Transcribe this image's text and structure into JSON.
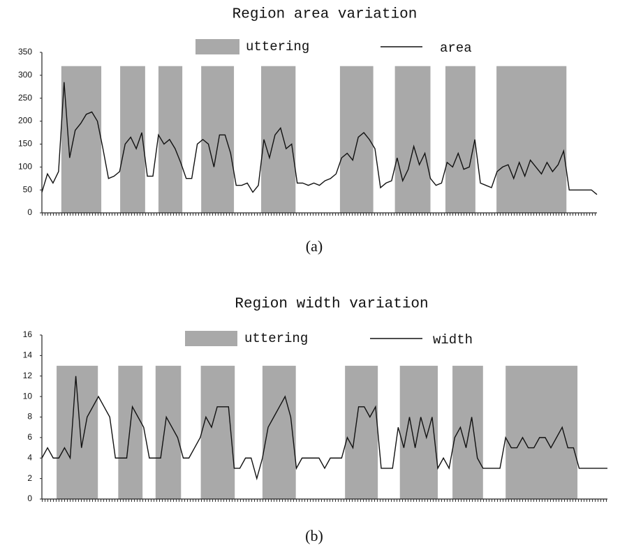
{
  "chart_data": [
    {
      "type": "line",
      "title": "Region area variation",
      "caption": "(a)",
      "xlim": [
        0,
        100
      ],
      "ylim": [
        0,
        350
      ],
      "yticks": [
        0,
        50,
        100,
        150,
        200,
        250,
        300,
        350
      ],
      "uttering": {
        "name": "uttering",
        "color": "#a9a9a9",
        "height": 320,
        "spans": [
          [
            3.5,
            10.7
          ],
          [
            14.1,
            18.6
          ],
          [
            21,
            25.3
          ],
          [
            28.7,
            34.6
          ],
          [
            39.5,
            45.7
          ],
          [
            53.7,
            59.7
          ],
          [
            63.6,
            70
          ],
          [
            72.7,
            78.1
          ],
          [
            81.9,
            94.5
          ]
        ]
      },
      "series": [
        {
          "name": "area",
          "color": "#111111",
          "values": [
            45,
            85,
            65,
            90,
            285,
            120,
            180,
            195,
            215,
            220,
            200,
            140,
            75,
            80,
            90,
            150,
            165,
            140,
            175,
            80,
            80,
            170,
            150,
            160,
            140,
            110,
            75,
            75,
            150,
            160,
            150,
            100,
            170,
            170,
            130,
            60,
            60,
            65,
            45,
            60,
            160,
            120,
            170,
            185,
            140,
            150,
            65,
            65,
            60,
            65,
            60,
            70,
            75,
            85,
            120,
            130,
            115,
            165,
            175,
            160,
            140,
            55,
            65,
            70,
            120,
            70,
            95,
            145,
            105,
            130,
            75,
            60,
            65,
            110,
            100,
            130,
            95,
            100,
            160,
            65,
            60,
            55,
            90,
            100,
            105,
            75,
            110,
            80,
            115,
            100,
            85,
            110,
            90,
            105,
            135,
            50,
            50,
            50,
            50,
            50,
            40
          ]
        }
      ]
    },
    {
      "type": "line",
      "title": "Region width variation",
      "caption": "(b)",
      "xlim": [
        0,
        100
      ],
      "ylim": [
        0,
        16
      ],
      "yticks": [
        0,
        2,
        4,
        6,
        8,
        10,
        12,
        14,
        16
      ],
      "uttering": {
        "name": "uttering",
        "color": "#a9a9a9",
        "height": 13,
        "spans": [
          [
            2.6,
            9.9
          ],
          [
            13.5,
            17.8
          ],
          [
            20.1,
            24.6
          ],
          [
            28.1,
            34.1
          ],
          [
            39,
            44.9
          ],
          [
            53.6,
            59.4
          ],
          [
            63.3,
            70
          ],
          [
            72.6,
            78
          ],
          [
            82,
            94.7
          ]
        ]
      },
      "series": [
        {
          "name": "width",
          "color": "#111111",
          "values": [
            4,
            5,
            4,
            4,
            5,
            4,
            12,
            5,
            8,
            9,
            10,
            9,
            8,
            4,
            4,
            4,
            9,
            8,
            7,
            4,
            4,
            4,
            8,
            7,
            6,
            4,
            4,
            5,
            6,
            8,
            7,
            9,
            9,
            9,
            3,
            3,
            4,
            4,
            2,
            4,
            7,
            8,
            9,
            10,
            8,
            3,
            4,
            4,
            4,
            4,
            3,
            4,
            4,
            4,
            6,
            5,
            9,
            9,
            8,
            9,
            3,
            3,
            3,
            7,
            5,
            8,
            5,
            8,
            6,
            8,
            3,
            4,
            3,
            6,
            7,
            5,
            8,
            4,
            3,
            3,
            3,
            3,
            6,
            5,
            5,
            6,
            5,
            5,
            6,
            6,
            5,
            6,
            7,
            5,
            5,
            3,
            3,
            3,
            3,
            3,
            3
          ]
        }
      ]
    }
  ]
}
